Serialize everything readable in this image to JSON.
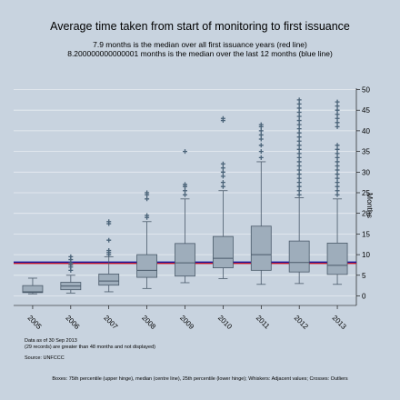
{
  "title": "Average time taken from start of monitoring to first issuance",
  "subtitle_red": "7.9 months is the median over all first issuance years (red line)",
  "subtitle_blue": "8.200000000000001 months is the median over the last 12 months (blue line)",
  "notes": {
    "data_as_of": "Data as of 30 Sep 2013",
    "excluded": "(29 records) are greater than 48 months and not displayed)",
    "source": "Source: UNFCCC"
  },
  "footer": "Boxes: 75th percentile (upper hinge), median (centre line), 25th percentile (lower hinge); Whiskers: Adjacent values; Crosses: Outliers",
  "colors": {
    "background": "#c8d3df",
    "plot_background": "#c8d3df",
    "box_fill": "#9eadbb",
    "box_stroke": "#4a5a6a",
    "outlier": "#4a6378",
    "red_line": "#c0102a",
    "blue_line": "#1a1aa0"
  },
  "chart_data": {
    "type": "boxplot",
    "ylabel": "Months",
    "ylim": [
      -2,
      50
    ],
    "yticks": [
      0,
      5,
      10,
      15,
      20,
      25,
      30,
      35,
      40,
      45,
      50
    ],
    "y_axis_side": "right",
    "grid": true,
    "reference_lines": [
      {
        "label": "red line",
        "value": 7.9
      },
      {
        "label": "blue line",
        "value": 8.2
      }
    ],
    "categories": [
      "2005",
      "2006",
      "2007",
      "2008",
      "2009",
      "2010",
      "2011",
      "2012",
      "2013"
    ],
    "boxes": [
      {
        "year": "2005",
        "lower_whisker": 0.5,
        "q1": 0.8,
        "median": 1.0,
        "q3": 2.5,
        "upper_whisker": 4.3,
        "outliers": []
      },
      {
        "year": "2006",
        "lower_whisker": 0.7,
        "q1": 1.5,
        "median": 2.4,
        "q3": 3.3,
        "upper_whisker": 5.0,
        "outliers": [
          6.2,
          7.0,
          7.5,
          8.0,
          8.8,
          9.5
        ]
      },
      {
        "year": "2007",
        "lower_whisker": 1.0,
        "q1": 2.6,
        "median": 3.6,
        "q3": 5.3,
        "upper_whisker": 9.5,
        "outliers": [
          10.0,
          10.5,
          11.0,
          13.5,
          17.5,
          18.0
        ]
      },
      {
        "year": "2008",
        "lower_whisker": 1.8,
        "q1": 4.5,
        "median": 6.2,
        "q3": 10.0,
        "upper_whisker": 18.0,
        "outliers": [
          19.0,
          19.5,
          23.5,
          24.5,
          25.0
        ]
      },
      {
        "year": "2009",
        "lower_whisker": 3.2,
        "q1": 4.8,
        "median": 8.0,
        "q3": 12.7,
        "upper_whisker": 23.5,
        "outliers": [
          24.5,
          25.5,
          26.5,
          27.0,
          35.0
        ]
      },
      {
        "year": "2010",
        "lower_whisker": 4.2,
        "q1": 6.8,
        "median": 9.1,
        "q3": 14.4,
        "upper_whisker": 25.5,
        "outliers": [
          26.5,
          27.5,
          29.0,
          30.0,
          31.0,
          32.0,
          42.5,
          43.0
        ]
      },
      {
        "year": "2011",
        "lower_whisker": 2.8,
        "q1": 6.2,
        "median": 10.0,
        "q3": 16.9,
        "upper_whisker": 32.5,
        "outliers": [
          33.5,
          35.0,
          36.5,
          38.0,
          39.0,
          40.0,
          41.0,
          41.5
        ]
      },
      {
        "year": "2012",
        "lower_whisker": 3.0,
        "q1": 5.8,
        "median": 8.1,
        "q3": 13.3,
        "upper_whisker": 23.8,
        "outliers": [
          24.5,
          25.5,
          26.5,
          27.5,
          28.5,
          29.5,
          30.5,
          31.5,
          32.5,
          33.5,
          34.5,
          35.5,
          36.5,
          37.5,
          38.5,
          39.5,
          40.5,
          41.5,
          42.5,
          43.5,
          44.5,
          45.5,
          46.5,
          47.5
        ]
      },
      {
        "year": "2013",
        "lower_whisker": 2.8,
        "q1": 5.2,
        "median": 7.4,
        "q3": 12.8,
        "upper_whisker": 23.5,
        "outliers": [
          24.5,
          25.5,
          26.5,
          27.5,
          28.5,
          29.5,
          30.5,
          31.5,
          32.5,
          33.5,
          34.5,
          35.5,
          36.5,
          41.0,
          42.0,
          43.0,
          44.0,
          45.0,
          46.0,
          47.0
        ]
      }
    ]
  }
}
